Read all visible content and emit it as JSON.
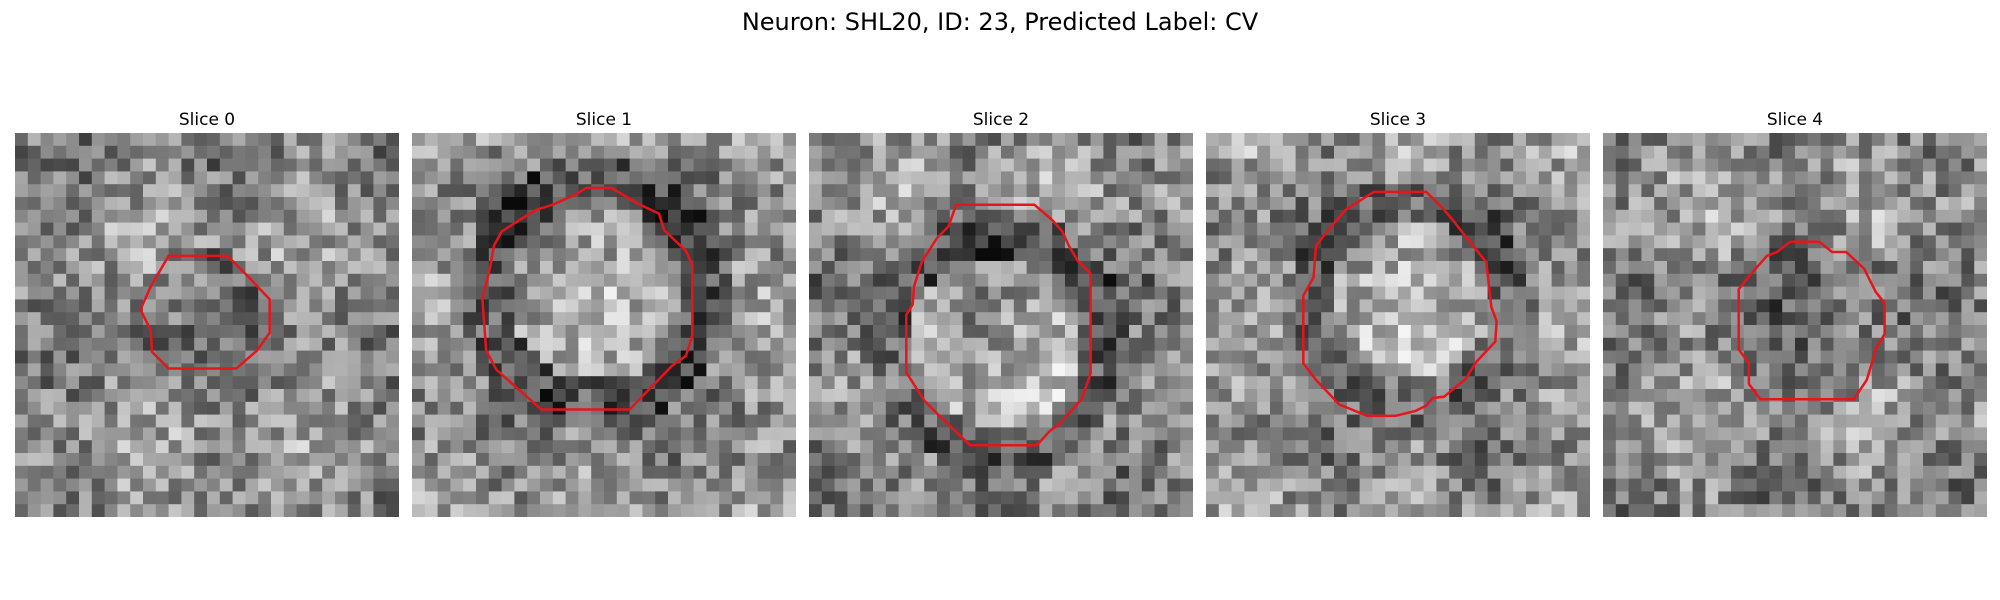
{
  "figure": {
    "title": "Neuron: SHL20, ID: 23, Predicted Label: CV",
    "contour_color": "#e8141b"
  },
  "panels": [
    {
      "title": "Slice 0"
    },
    {
      "title": "Slice 1"
    },
    {
      "title": "Slice 2"
    },
    {
      "title": "Slice 3"
    },
    {
      "title": "Slice 4"
    }
  ]
}
